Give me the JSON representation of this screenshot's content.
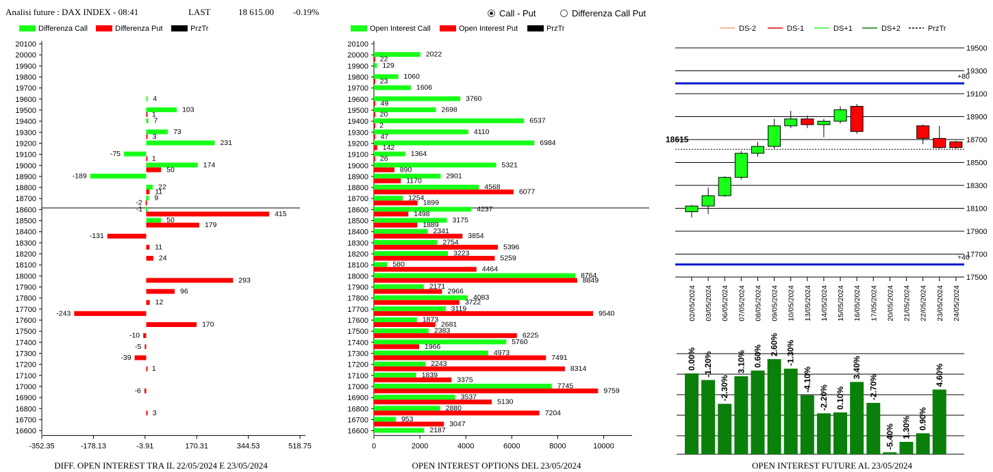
{
  "header": {
    "title": "Analisi future : DAX INDEX - 08:41",
    "last_label": "LAST",
    "last_value": "18 615.00",
    "change": "-0.19%"
  },
  "radio": {
    "call_put": "Call - Put",
    "diff_call_put": "Differenza Call Put",
    "selected": "call_put"
  },
  "colors": {
    "green": "#18ff18",
    "red": "#ff0000",
    "black": "#000000",
    "dark_green": "#0a7f0a",
    "blue": "#0018cc"
  },
  "chart_data": [
    {
      "type": "bar",
      "title": "DIFF. OPEN INTEREST TRA IL 22/05/2024 E 23/05/2024",
      "legend": [
        "Differenza Call",
        "Differenza Put",
        "PrzTr"
      ],
      "categories": [
        20100,
        20000,
        19900,
        19800,
        19700,
        19600,
        19500,
        19400,
        19300,
        19200,
        19100,
        19000,
        18900,
        18800,
        18700,
        18600,
        18500,
        18400,
        18300,
        18200,
        18100,
        18000,
        17900,
        17800,
        17700,
        17600,
        17500,
        17400,
        17300,
        17200,
        17100,
        17000,
        16900,
        16800,
        16700,
        16600
      ],
      "series": [
        {
          "name": "Differenza Call",
          "values": [
            null,
            null,
            null,
            null,
            null,
            4,
            103,
            7,
            73,
            231,
            -75,
            174,
            -189,
            22,
            9,
            -1,
            50,
            null,
            null,
            null,
            null,
            null,
            null,
            null,
            null,
            null,
            null,
            null,
            null,
            null,
            null,
            null,
            null,
            null,
            null,
            null
          ]
        },
        {
          "name": "Differenza Put",
          "values": [
            null,
            null,
            null,
            null,
            null,
            null,
            1,
            null,
            3,
            null,
            1,
            50,
            null,
            11,
            -2,
            415,
            179,
            -131,
            11,
            24,
            null,
            293,
            96,
            12,
            -243,
            170,
            -10,
            -5,
            -39,
            1,
            null,
            -6,
            null,
            3,
            null,
            null
          ]
        }
      ],
      "xticks": [
        "-352.35",
        "-178.13",
        "-3.91",
        "170.31",
        "344.53",
        "518.75"
      ],
      "xlim": [
        -352.35,
        518.75
      ],
      "prz_tr": 18615,
      "legend_position": "top-left"
    },
    {
      "type": "bar",
      "title": "OPEN INTEREST OPTIONS DEL 23/05/2024",
      "legend": [
        "Open Interest Call",
        "Open Interest Put",
        "PrzTr"
      ],
      "categories": [
        20100,
        20000,
        19900,
        19800,
        19700,
        19600,
        19500,
        19400,
        19300,
        19200,
        19100,
        19000,
        18900,
        18800,
        18700,
        18600,
        18500,
        18400,
        18300,
        18200,
        18100,
        18000,
        17900,
        17800,
        17700,
        17600,
        17500,
        17400,
        17300,
        17200,
        17100,
        17000,
        16900,
        16800,
        16700,
        16600
      ],
      "series": [
        {
          "name": "Open Interest Call",
          "values": [
            null,
            2022,
            129,
            1060,
            1606,
            3760,
            2698,
            6537,
            4110,
            6984,
            1364,
            5321,
            2901,
            4568,
            1254,
            4237,
            3175,
            2341,
            2754,
            3223,
            580,
            8764,
            2171,
            4083,
            3119,
            1873,
            2383,
            5760,
            4973,
            2243,
            1839,
            7745,
            3537,
            2880,
            953,
            2187
          ]
        },
        {
          "name": "Open Interest Put",
          "values": [
            null,
            22,
            null,
            23,
            null,
            49,
            20,
            2,
            47,
            142,
            26,
            890,
            1170,
            6077,
            1899,
            1498,
            1889,
            3854,
            5396,
            5259,
            4464,
            8849,
            2966,
            3722,
            9540,
            2681,
            6225,
            1966,
            7491,
            8314,
            3375,
            9759,
            5130,
            7204,
            3047,
            null
          ]
        }
      ],
      "xticks": [
        "0",
        "2000",
        "4000",
        "6000",
        "8000",
        "10000"
      ],
      "xlim": [
        0,
        11000
      ],
      "prz_tr": 18615,
      "legend_position": "top-left"
    },
    {
      "type": "candlestick",
      "legend": [
        "DS-2",
        "DS-1",
        "DS+1",
        "DS+2",
        "PrzTr"
      ],
      "dates": [
        "02/05/2024",
        "03/05/2024",
        "06/05/2024",
        "07/05/2024",
        "08/05/2024",
        "09/05/2024",
        "10/05/2024",
        "13/05/2024",
        "14/05/2024",
        "15/05/2024",
        "16/05/2024",
        "17/05/2024",
        "20/05/2024",
        "21/05/2024",
        "22/05/2024",
        "23/05/2024",
        "24/05/2024"
      ],
      "ohlc": [
        [
          18070,
          18130,
          18020,
          18120
        ],
        [
          18120,
          18280,
          18050,
          18210
        ],
        [
          18210,
          18380,
          18200,
          18370
        ],
        [
          18370,
          18600,
          18350,
          18580
        ],
        [
          18580,
          18680,
          18550,
          18640
        ],
        [
          18640,
          18880,
          18620,
          18820
        ],
        [
          18820,
          18950,
          18800,
          18880
        ],
        [
          18880,
          18910,
          18800,
          18830
        ],
        [
          18830,
          18880,
          18720,
          18860
        ],
        [
          18860,
          18990,
          18840,
          18960
        ],
        [
          18990,
          19010,
          18750,
          18770
        ],
        null,
        null,
        null,
        [
          18820,
          18830,
          18660,
          18710
        ],
        [
          18710,
          18820,
          18620,
          18630
        ],
        [
          18680,
          18690,
          18620,
          18630
        ]
      ],
      "yticks": [
        "19500",
        "19300",
        "19100",
        "18900",
        "18700",
        "18500",
        "18300",
        "18100",
        "17900",
        "17700",
        "17500"
      ],
      "ylim": [
        17500,
        19500
      ],
      "prz_tr": 18615,
      "prz_label": "18615",
      "upper_band": {
        "value": 19190,
        "label": "+80"
      },
      "lower_band": {
        "value": 17610,
        "label": "+40"
      },
      "legend_position": "top"
    },
    {
      "type": "bar",
      "title": "OPEN INTEREST FUTURE AL 23/05/2024",
      "categories": [
        "02/05/2024",
        "03/05/2024",
        "06/05/2024",
        "07/05/2024",
        "08/05/2024",
        "09/05/2024",
        "10/05/2024",
        "13/05/2024",
        "14/05/2024",
        "15/05/2024",
        "16/05/2024",
        "17/05/2024",
        "20/05/2024",
        "21/05/2024",
        "22/05/2024",
        "23/05/2024",
        "24/05/2024"
      ],
      "values": [
        0.85,
        0.78,
        0.53,
        0.82,
        0.88,
        1.0,
        0.9,
        0.62,
        0.43,
        0.44,
        0.76,
        0.54,
        0.02,
        0.13,
        0.22,
        0.68,
        null
      ],
      "labels": [
        "0.00%",
        "-1.20%",
        "-2.30%",
        "3.10%",
        "0.60%",
        "2.60%",
        "-1.30%",
        "-4.10%",
        "-2.20%",
        "0.10%",
        "3.40%",
        "-2.70%",
        "-5.40%",
        "1.30%",
        "0.90%",
        "4.60%",
        ""
      ]
    }
  ]
}
